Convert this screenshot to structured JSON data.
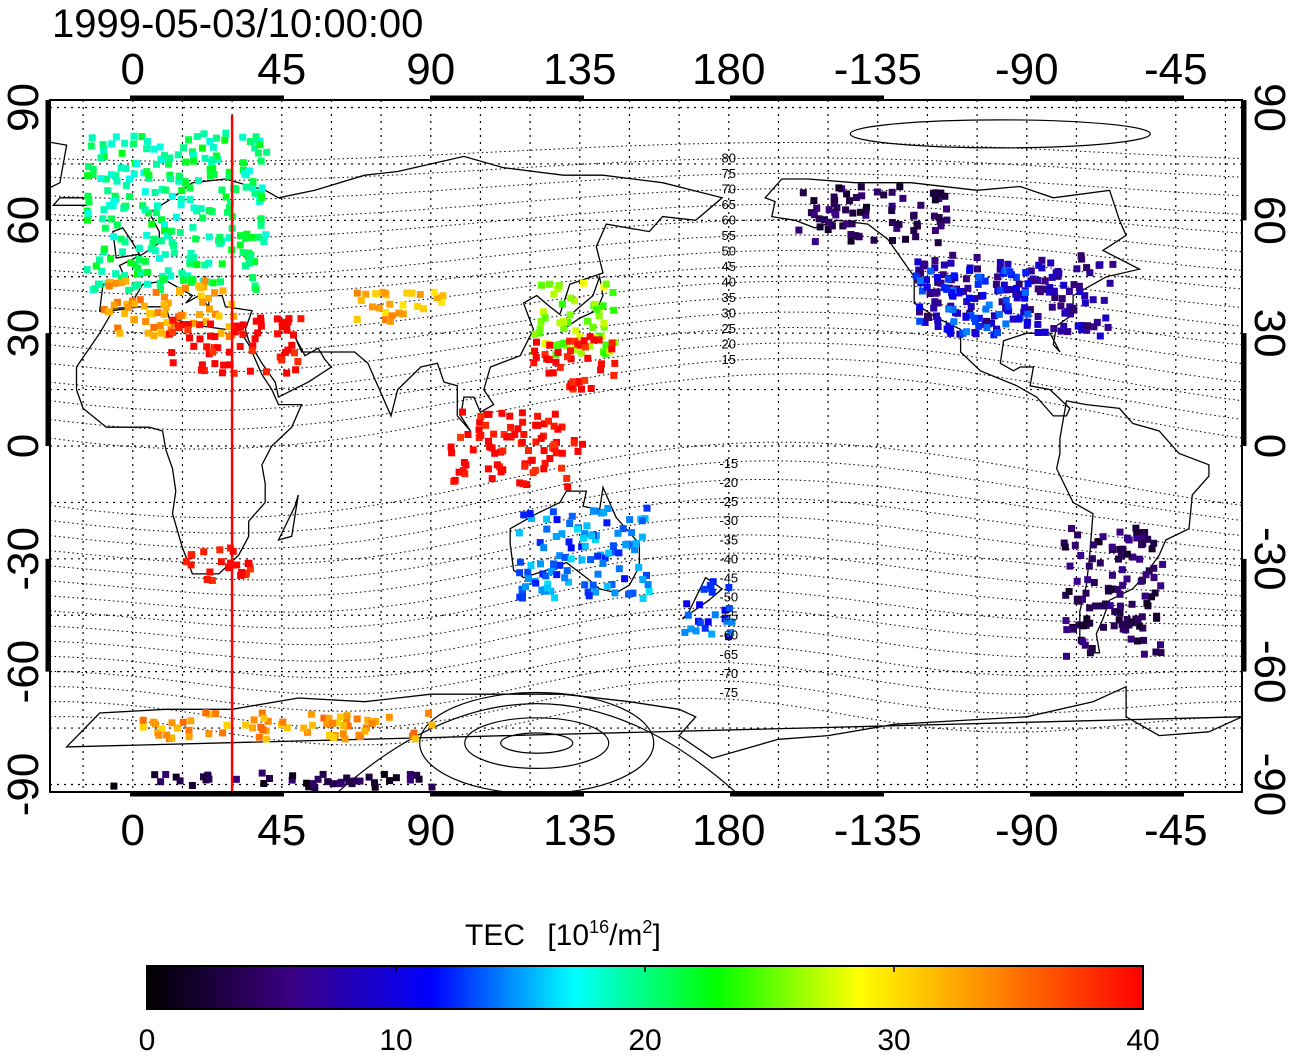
{
  "title": "1999-05-03/10:00:00",
  "top_lon_ticks": [
    "0",
    "45",
    "90",
    "135",
    "180",
    "-135",
    "-90",
    "-45"
  ],
  "bottom_lon_ticks": [
    "0",
    "45",
    "90",
    "135",
    "180",
    "-135",
    "-90",
    "-45"
  ],
  "left_lat_ticks": [
    "90",
    "60",
    "30",
    "0",
    "-30",
    "-60",
    "-90"
  ],
  "right_lat_ticks": [
    "90",
    "60",
    "30",
    "0",
    "-30",
    "-60",
    "-90"
  ],
  "contour_labels": [
    "80",
    "75",
    "70",
    "65",
    "60",
    "55",
    "50",
    "45",
    "40",
    "35",
    "30",
    "25",
    "20",
    "15",
    "-15",
    "-20",
    "-25",
    "-30",
    "-35",
    "-40",
    "-45",
    "-50",
    "-55",
    "-60",
    "-65",
    "-70",
    "-75"
  ],
  "colorbar": {
    "title_text": "TEC",
    "unit_text": "[10",
    "unit_exp": "16",
    "unit_slash": "/m",
    "unit_exp2": "2",
    "unit_close": "]",
    "ticks": [
      "0",
      "10",
      "20",
      "30",
      "40"
    ],
    "colors": [
      "#000000",
      "#3b0080",
      "#0000ff",
      "#00ffff",
      "#00ff00",
      "#ffff00",
      "#ff8000",
      "#ff0000"
    ]
  },
  "chart_data": {
    "type": "heatmap",
    "title": "1999-05-03/10:00:00",
    "xlabel": "",
    "ylabel": "",
    "colorbar_label": "TEC [10^16/m^2]",
    "xlim": [
      -25,
      335
    ],
    "ylim": [
      -92,
      92
    ],
    "clim": [
      0,
      40
    ],
    "grid": true,
    "marker_longitude": 30,
    "regions": [
      {
        "lon": [
          -15,
          40
        ],
        "lat": [
          42,
          85
        ],
        "tec": 20
      },
      {
        "lon": [
          -10,
          30
        ],
        "lat": [
          30,
          45
        ],
        "tec": 33
      },
      {
        "lon": [
          10,
          50
        ],
        "lat": [
          20,
          35
        ],
        "tec": 40
      },
      {
        "lon": [
          65,
          95
        ],
        "lat": [
          34,
          42
        ],
        "tec": 32
      },
      {
        "lon": [
          120,
          145
        ],
        "lat": [
          25,
          45
        ],
        "tec": 26
      },
      {
        "lon": [
          120,
          145
        ],
        "lat": [
          15,
          30
        ],
        "tec": 40
      },
      {
        "lon": [
          95,
          135
        ],
        "lat": [
          -10,
          10
        ],
        "tec": 40
      },
      {
        "lon": [
          15,
          35
        ],
        "lat": [
          -35,
          -25
        ],
        "tec": 40
      },
      {
        "lon": [
          115,
          155
        ],
        "lat": [
          -40,
          -15
        ],
        "tec": 14
      },
      {
        "lon": [
          165,
          180
        ],
        "lat": [
          -50,
          -35
        ],
        "tec": 13
      },
      {
        "lon": [
          200,
          245
        ],
        "lat": [
          55,
          70
        ],
        "tec": 4
      },
      {
        "lon": [
          235,
          295
        ],
        "lat": [
          30,
          52
        ],
        "tec": 7
      },
      {
        "lon": [
          235,
          270
        ],
        "lat": [
          30,
          48
        ],
        "tec": 12
      },
      {
        "lon": [
          280,
          310
        ],
        "lat": [
          -55,
          -20
        ],
        "tec": 4
      },
      {
        "lon": [
          -10,
          90
        ],
        "lat": [
          -90,
          -86
        ],
        "tec": 3
      },
      {
        "lon": [
          0,
          90
        ],
        "lat": [
          -77,
          -70
        ],
        "tec": 33
      }
    ]
  }
}
